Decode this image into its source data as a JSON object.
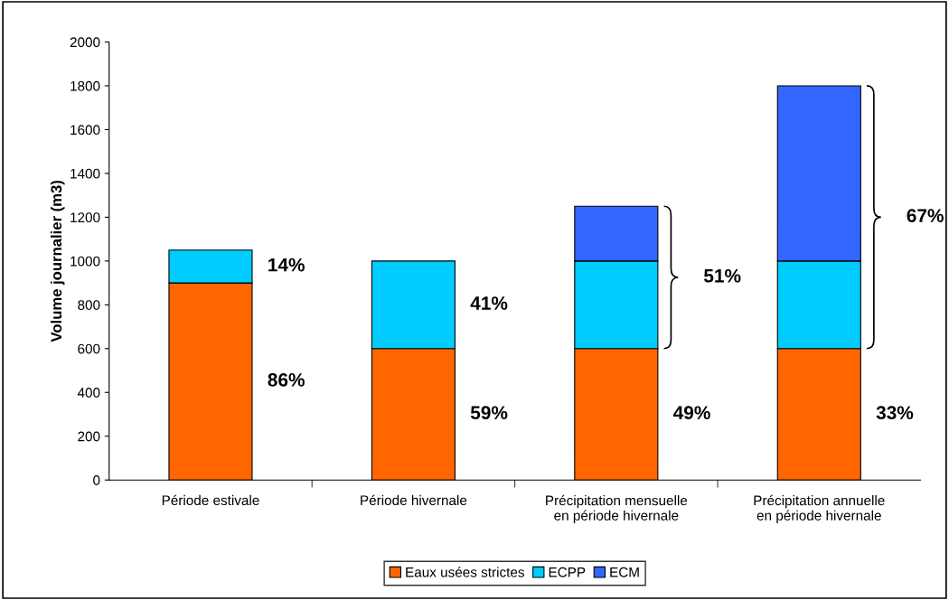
{
  "chart_data": {
    "type": "bar",
    "stacked": true,
    "categories": [
      "Période estivale",
      "Période hivernale",
      "Précipitation mensuelle\nen période hivernale",
      "Précipitation annuelle\nen période hivernale"
    ],
    "series": [
      {
        "name": "Eaux usées strictes",
        "color": "#ff6600",
        "values": [
          900,
          600,
          600,
          600
        ]
      },
      {
        "name": "ECPP",
        "color": "#00ccff",
        "values": [
          150,
          400,
          400,
          400
        ]
      },
      {
        "name": "ECM",
        "color": "#3366ff",
        "values": [
          null,
          null,
          250,
          800
        ]
      }
    ],
    "ylabel": "Volume journalier (m3)",
    "ylim": [
      0,
      2000
    ],
    "yticks": [
      0,
      200,
      400,
      600,
      800,
      1000,
      1200,
      1400,
      1600,
      1800,
      2000
    ],
    "grid": false,
    "legend": "bottom",
    "annotations": [
      "86%",
      "14%",
      "59%",
      "41%",
      "49%",
      "51%",
      "33%",
      "67%"
    ]
  }
}
